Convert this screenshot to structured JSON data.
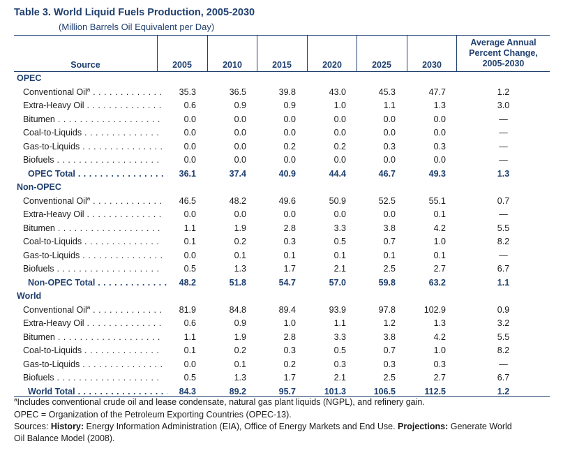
{
  "title": "Table 3.  World Liquid Fuels Production, 2005-2030",
  "subtitle": "(Million Barrels Oil Equivalent per Day)",
  "header": {
    "source": "Source",
    "years": [
      "2005",
      "2010",
      "2015",
      "2020",
      "2025",
      "2030"
    ],
    "avg_line1": "Average Annual",
    "avg_line2": "Percent Change,",
    "avg_line3": "2005-2030"
  },
  "groups": [
    {
      "name": "OPEC",
      "rows": [
        {
          "label": "Conventional Oil",
          "sup": "a",
          "values": [
            "35.3",
            "36.5",
            "39.8",
            "43.0",
            "45.3",
            "47.7"
          ],
          "avg": "1.2"
        },
        {
          "label": "Extra-Heavy Oil",
          "sup": "",
          "values": [
            "0.6",
            "0.9",
            "0.9",
            "1.0",
            "1.1",
            "1.3"
          ],
          "avg": "3.0"
        },
        {
          "label": "Bitumen",
          "sup": "",
          "values": [
            "0.0",
            "0.0",
            "0.0",
            "0.0",
            "0.0",
            "0.0"
          ],
          "avg": "—"
        },
        {
          "label": "Coal-to-Liquids",
          "sup": "",
          "values": [
            "0.0",
            "0.0",
            "0.0",
            "0.0",
            "0.0",
            "0.0"
          ],
          "avg": "—"
        },
        {
          "label": "Gas-to-Liquids",
          "sup": "",
          "values": [
            "0.0",
            "0.0",
            "0.2",
            "0.2",
            "0.3",
            "0.3"
          ],
          "avg": "—"
        },
        {
          "label": "Biofuels",
          "sup": "",
          "values": [
            "0.0",
            "0.0",
            "0.0",
            "0.0",
            "0.0",
            "0.0"
          ],
          "avg": "—"
        }
      ],
      "total": {
        "label": "OPEC Total",
        "values": [
          "36.1",
          "37.4",
          "40.9",
          "44.4",
          "46.7",
          "49.3"
        ],
        "avg": "1.3"
      }
    },
    {
      "name": "Non-OPEC",
      "rows": [
        {
          "label": "Conventional Oil",
          "sup": "a",
          "values": [
            "46.5",
            "48.2",
            "49.6",
            "50.9",
            "52.5",
            "55.1"
          ],
          "avg": "0.7"
        },
        {
          "label": "Extra-Heavy Oil",
          "sup": "",
          "values": [
            "0.0",
            "0.0",
            "0.0",
            "0.0",
            "0.0",
            "0.1"
          ],
          "avg": "—"
        },
        {
          "label": "Bitumen",
          "sup": "",
          "values": [
            "1.1",
            "1.9",
            "2.8",
            "3.3",
            "3.8",
            "4.2"
          ],
          "avg": "5.5"
        },
        {
          "label": "Coal-to-Liquids",
          "sup": "",
          "values": [
            "0.1",
            "0.2",
            "0.3",
            "0.5",
            "0.7",
            "1.0"
          ],
          "avg": "8.2"
        },
        {
          "label": "Gas-to-Liquids",
          "sup": "",
          "values": [
            "0.0",
            "0.1",
            "0.1",
            "0.1",
            "0.1",
            "0.1"
          ],
          "avg": "—"
        },
        {
          "label": "Biofuels",
          "sup": "",
          "values": [
            "0.5",
            "1.3",
            "1.7",
            "2.1",
            "2.5",
            "2.7"
          ],
          "avg": "6.7"
        }
      ],
      "total": {
        "label": "Non-OPEC Total",
        "values": [
          "48.2",
          "51.8",
          "54.7",
          "57.0",
          "59.8",
          "63.2"
        ],
        "avg": "1.1"
      }
    },
    {
      "name": "World",
      "rows": [
        {
          "label": "Conventional Oil",
          "sup": "a",
          "values": [
            "81.9",
            "84.8",
            "89.4",
            "93.9",
            "97.8",
            "102.9"
          ],
          "avg": "0.9"
        },
        {
          "label": "Extra-Heavy Oil",
          "sup": "",
          "values": [
            "0.6",
            "0.9",
            "1.0",
            "1.1",
            "1.2",
            "1.3"
          ],
          "avg": "3.2"
        },
        {
          "label": "Bitumen",
          "sup": "",
          "values": [
            "1.1",
            "1.9",
            "2.8",
            "3.3",
            "3.8",
            "4.2"
          ],
          "avg": "5.5"
        },
        {
          "label": "Coal-to-Liquids",
          "sup": "",
          "values": [
            "0.1",
            "0.2",
            "0.3",
            "0.5",
            "0.7",
            "1.0"
          ],
          "avg": "8.2"
        },
        {
          "label": "Gas-to-Liquids",
          "sup": "",
          "values": [
            "0.0",
            "0.1",
            "0.2",
            "0.3",
            "0.3",
            "0.3"
          ],
          "avg": "—"
        },
        {
          "label": "Biofuels",
          "sup": "",
          "values": [
            "0.5",
            "1.3",
            "1.7",
            "2.1",
            "2.5",
            "2.7"
          ],
          "avg": "6.7"
        }
      ],
      "total": {
        "label": "World Total",
        "values": [
          "84.3",
          "89.2",
          "95.7",
          "101.3",
          "106.5",
          "112.5"
        ],
        "avg": "1.2"
      }
    }
  ],
  "footnotes": {
    "a_marker": "a",
    "a_text": "Includes conventional crude oil and lease condensate, natural gas plant liquids (NGPL), and refinery gain.",
    "opec_def": "OPEC = Organization of the Petroleum Exporting Countries (OPEC-13).",
    "sources_prefix": "Sources: ",
    "history_label": "History:",
    "history_text": " Energy Information Administration (EIA), Office of Energy Markets and End Use. ",
    "projections_label": "Projections:",
    "projections_text": " Generate World",
    "sources_line2": "Oil Balance Model (2008)."
  }
}
